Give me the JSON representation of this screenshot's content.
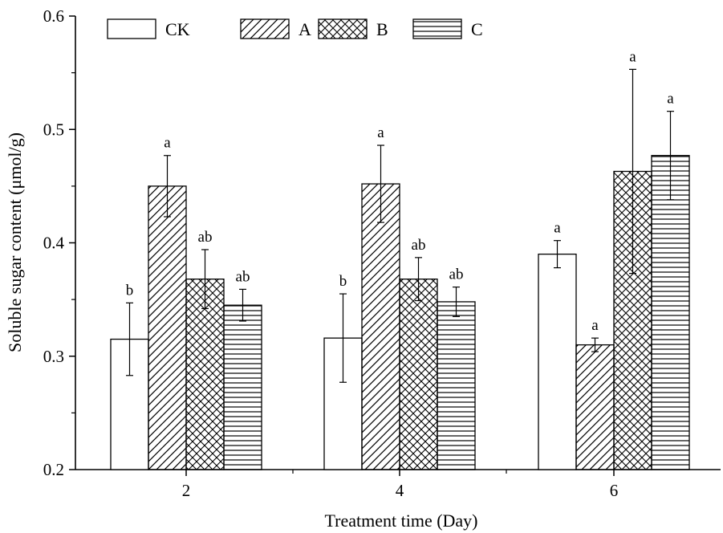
{
  "chart_data": {
    "type": "bar",
    "title": "",
    "xlabel": "Treatment time (Day)",
    "ylabel": "Soluble sugar content (μmol/g)",
    "ylim": [
      0.2,
      0.6
    ],
    "yticks": [
      "0.2",
      "0.3",
      "0.4",
      "0.5",
      "0.6"
    ],
    "categories": [
      "2",
      "4",
      "6"
    ],
    "series": [
      {
        "name": "CK",
        "pattern": "empty",
        "values": [
          0.315,
          0.316,
          0.39
        ],
        "errors": [
          0.032,
          0.039,
          0.012
        ],
        "labels": [
          "b",
          "b",
          "a"
        ]
      },
      {
        "name": "A",
        "pattern": "diagonal",
        "values": [
          0.45,
          0.452,
          0.31
        ],
        "errors": [
          0.027,
          0.034,
          0.006
        ],
        "labels": [
          "a",
          "a",
          "a"
        ]
      },
      {
        "name": "B",
        "pattern": "crosshatch",
        "values": [
          0.368,
          0.368,
          0.463
        ],
        "errors": [
          0.026,
          0.019,
          0.09
        ],
        "labels": [
          "ab",
          "ab",
          "a"
        ]
      },
      {
        "name": "C",
        "pattern": "horizontal",
        "values": [
          0.345,
          0.348,
          0.477
        ],
        "errors": [
          0.014,
          0.013,
          0.039
        ],
        "labels": [
          "ab",
          "ab",
          "a"
        ]
      }
    ],
    "legend_position": "top-left",
    "grid": false
  },
  "colors": {
    "ink": "#000000",
    "background": "#ffffff"
  }
}
